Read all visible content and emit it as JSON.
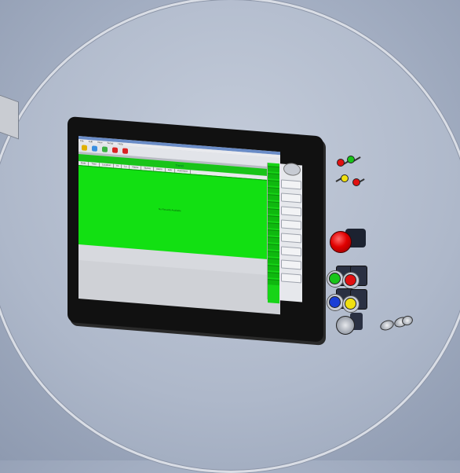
{
  "viewport": {
    "background_color": "#a9b3c6",
    "ring_color": "#d9dde5"
  },
  "hmi_screen": {
    "menu_items": [
      "File",
      "Edit",
      "View",
      "Setup",
      "Help"
    ],
    "toolbar_buttons": [
      {
        "name": "toolbar-button-1",
        "color": "#e0b000"
      },
      {
        "name": "toolbar-button-2",
        "color": "#3a8ee0"
      },
      {
        "name": "toolbar-button-3",
        "color": "#3cb043"
      },
      {
        "name": "toolbar-button-4",
        "color": "#d92323"
      },
      {
        "name": "toolbar-button-5",
        "color": "#d92323"
      }
    ],
    "header_title": "Trend",
    "grid_columns": [
      "Date",
      "Time",
      "Location",
      "Hi",
      "Lo",
      "Name",
      "Status",
      "Alarm",
      "Ack",
      "Comment"
    ],
    "body_message": "No Records Available",
    "accent_green": "#12e012"
  },
  "panel_devices": {
    "pilot_lights": [
      "red",
      "green",
      "yellow",
      "red"
    ],
    "emergency_stop_color": "#e00000",
    "pushbuttons": [
      {
        "name": "green-pushbutton",
        "color": "#19c419"
      },
      {
        "name": "red-pushbutton",
        "color": "#e01010"
      },
      {
        "name": "blue-pushbutton",
        "color": "#1a3fd6"
      },
      {
        "name": "yellow-pushbutton",
        "color": "#f0e010"
      }
    ],
    "selector_switch": "selector-switch",
    "key_switches": 2
  }
}
